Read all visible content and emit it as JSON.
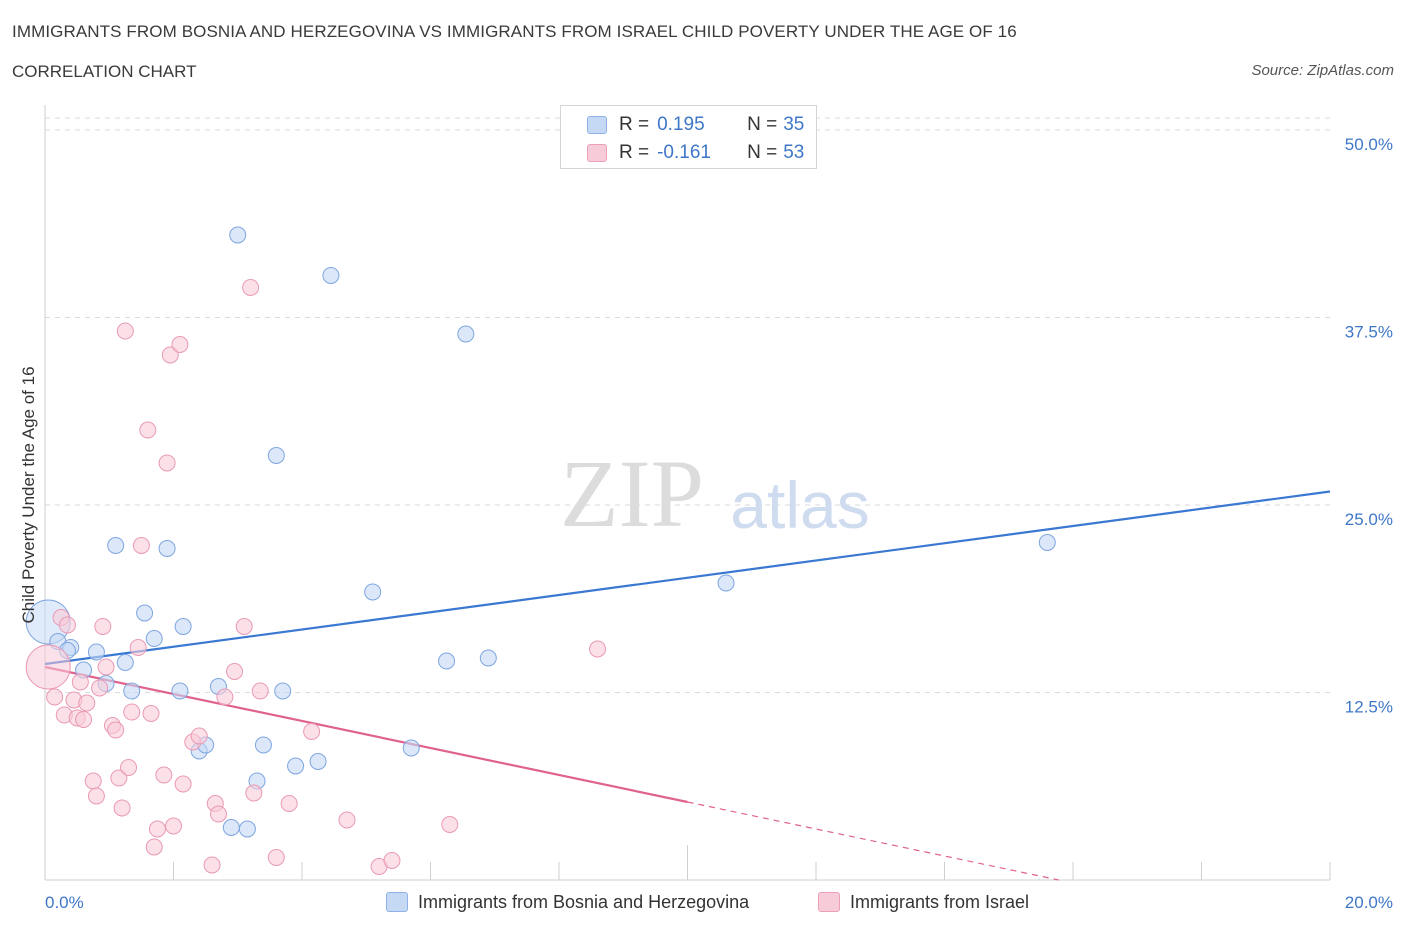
{
  "header": {
    "title": "IMMIGRANTS FROM BOSNIA AND HERZEGOVINA VS IMMIGRANTS FROM ISRAEL CHILD POVERTY UNDER THE AGE OF 16",
    "subtitle": "CORRELATION CHART",
    "source": "Source: ZipAtlas.com"
  },
  "legend": {
    "r_label": "R =",
    "n_label": "N =",
    "series_a": {
      "r": "0.195",
      "n": "35"
    },
    "series_b": {
      "r": "-0.161",
      "n": "53"
    }
  },
  "watermark": {
    "zip": "ZIP",
    "atlas": "atlas"
  },
  "colors": {
    "blue": "#3a78d2",
    "blue_fill": "#c5d9f5",
    "pink": "#e0628f",
    "pink_fill": "#f8cbd8",
    "grid": "#d9d9d9",
    "tick_label": "#3f77c8"
  },
  "chart_data": {
    "type": "scatter",
    "title": "IMMIGRANTS FROM BOSNIA AND HERZEGOVINA VS IMMIGRANTS FROM ISRAEL CHILD POVERTY UNDER THE AGE OF 16",
    "xlabel": "",
    "ylabel": "Child Poverty Under the Age of 16",
    "xlim": [
      0,
      20
    ],
    "ylim": [
      0,
      51
    ],
    "x_tick_labels": [
      "0.0%",
      "20.0%"
    ],
    "y_ticks": [
      12.5,
      25.0,
      37.5,
      50.0
    ],
    "y_tick_labels": [
      "12.5%",
      "25.0%",
      "37.5%",
      "50.0%"
    ],
    "series": [
      {
        "name": "Immigrants from Bosnia and Herzegovina",
        "r": 0.195,
        "n": 35,
        "trend": {
          "x": [
            0,
            20
          ],
          "y": [
            14.4,
            25.9
          ]
        },
        "points": [
          [
            0.05,
            17.2,
            "big"
          ],
          [
            0.2,
            15.9
          ],
          [
            0.4,
            15.5
          ],
          [
            0.6,
            14.0
          ],
          [
            0.8,
            15.2
          ],
          [
            0.95,
            13.1
          ],
          [
            1.1,
            22.3
          ],
          [
            1.25,
            14.5
          ],
          [
            1.35,
            12.6
          ],
          [
            1.55,
            17.8
          ],
          [
            1.7,
            16.1
          ],
          [
            1.9,
            22.1
          ],
          [
            2.1,
            12.6
          ],
          [
            2.15,
            16.9
          ],
          [
            2.4,
            8.6
          ],
          [
            2.5,
            9.0
          ],
          [
            2.7,
            12.9
          ],
          [
            2.9,
            3.5
          ],
          [
            3.0,
            43.0
          ],
          [
            3.15,
            3.4
          ],
          [
            3.3,
            6.6
          ],
          [
            3.4,
            9.0
          ],
          [
            3.6,
            28.3
          ],
          [
            3.7,
            12.6
          ],
          [
            3.9,
            7.6
          ],
          [
            4.25,
            7.9
          ],
          [
            4.45,
            40.3
          ],
          [
            5.1,
            19.2
          ],
          [
            5.7,
            8.8
          ],
          [
            6.25,
            14.6
          ],
          [
            6.55,
            36.4
          ],
          [
            6.9,
            14.8
          ],
          [
            10.6,
            19.8
          ],
          [
            15.6,
            22.5
          ],
          [
            0.35,
            15.3
          ]
        ]
      },
      {
        "name": "Immigrants from Israel",
        "r": -0.161,
        "n": 53,
        "trend": {
          "x": [
            0,
            10
          ],
          "y": [
            14.2,
            5.2
          ]
        },
        "trend_dashed": {
          "x": [
            10,
            20
          ],
          "y": [
            5.2,
            -3.8
          ]
        },
        "points": [
          [
            0.05,
            14.2,
            "big"
          ],
          [
            0.15,
            12.2
          ],
          [
            0.25,
            17.5
          ],
          [
            0.3,
            11.0
          ],
          [
            0.35,
            17.0
          ],
          [
            0.45,
            12.0
          ],
          [
            0.5,
            10.8
          ],
          [
            0.55,
            13.2
          ],
          [
            0.6,
            10.7
          ],
          [
            0.65,
            11.8
          ],
          [
            0.75,
            6.6
          ],
          [
            0.8,
            5.6
          ],
          [
            0.85,
            12.8
          ],
          [
            0.9,
            16.9
          ],
          [
            0.95,
            14.2
          ],
          [
            1.05,
            10.3
          ],
          [
            1.1,
            10.0
          ],
          [
            1.15,
            6.8
          ],
          [
            1.2,
            4.8
          ],
          [
            1.25,
            36.6
          ],
          [
            1.3,
            7.5
          ],
          [
            1.35,
            11.2
          ],
          [
            1.45,
            15.5
          ],
          [
            1.5,
            22.3
          ],
          [
            1.6,
            30.0
          ],
          [
            1.65,
            11.1
          ],
          [
            1.7,
            2.2
          ],
          [
            1.75,
            3.4
          ],
          [
            1.85,
            7.0
          ],
          [
            1.9,
            27.8
          ],
          [
            1.95,
            35.0
          ],
          [
            2.0,
            3.6
          ],
          [
            2.1,
            35.7
          ],
          [
            2.15,
            6.4
          ],
          [
            2.3,
            9.2
          ],
          [
            2.4,
            9.6
          ],
          [
            2.6,
            1.0
          ],
          [
            2.65,
            5.1
          ],
          [
            2.7,
            4.4
          ],
          [
            2.8,
            12.2
          ],
          [
            2.95,
            13.9
          ],
          [
            3.1,
            16.9
          ],
          [
            3.2,
            39.5
          ],
          [
            3.25,
            5.8
          ],
          [
            3.35,
            12.6
          ],
          [
            3.6,
            1.5
          ],
          [
            3.8,
            5.1
          ],
          [
            4.15,
            9.9
          ],
          [
            4.7,
            4.0
          ],
          [
            5.2,
            0.9
          ],
          [
            5.4,
            1.3
          ],
          [
            6.3,
            3.7
          ],
          [
            8.6,
            15.4
          ]
        ]
      }
    ]
  }
}
